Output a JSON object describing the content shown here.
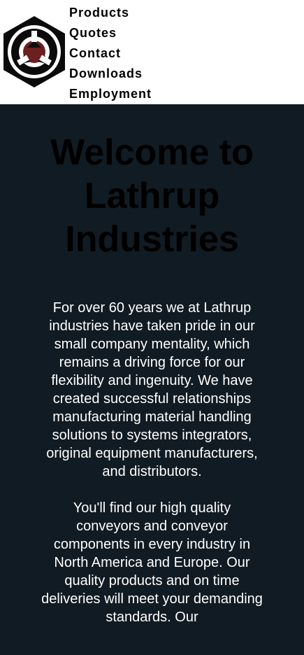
{
  "nav": {
    "items": [
      {
        "label": "Products"
      },
      {
        "label": "Quotes"
      },
      {
        "label": "Contact"
      },
      {
        "label": "Downloads"
      },
      {
        "label": "Employment"
      }
    ]
  },
  "main": {
    "title": "Welcome to Lathrup Industries",
    "paragraphs": [
      "For over 60 years we at Lathrup industries have taken pride in our small company mentality, which remains a driving force for our flexibility and ingenuity. We have created successful relationships manufacturing material handling solutions to systems integrators, original equipment manufacturers, and distributors.",
      "You'll find our high quality conveyors and conveyor components in every industry in North America and Europe. Our quality products and on time deliveries will meet your demanding standards. Our"
    ]
  },
  "colors": {
    "header_bg": "#ffffff",
    "main_bg": "#111b23",
    "title_text": "#000000",
    "body_text": "#ffffff"
  },
  "icons": {
    "logo": "lathrup-logo-icon"
  }
}
